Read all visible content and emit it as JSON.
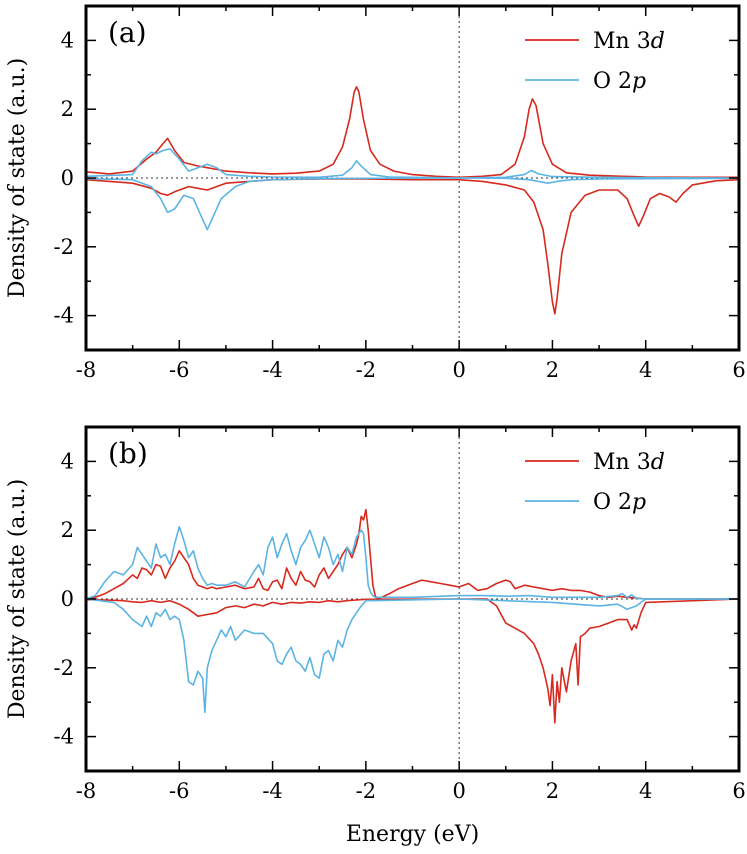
{
  "chart_data": [
    {
      "type": "line",
      "panel_label": "(a)",
      "xlabel": "",
      "ylabel": "Density of state (a.u.)",
      "xlim": [
        -8,
        6
      ],
      "ylim": [
        -5,
        5
      ],
      "xticks": [
        -8,
        -6,
        -4,
        -2,
        0,
        2,
        4,
        6
      ],
      "xtick_labels": [
        "-8",
        "-6",
        "-4",
        "-2",
        "0",
        "2",
        "4",
        "6"
      ],
      "yticks": [
        -4,
        -2,
        0,
        2,
        4
      ],
      "ytick_labels": [
        "-4",
        "-2",
        "0",
        "2",
        "4"
      ],
      "legend_position": "top-right",
      "fermi_level": 0,
      "series": [
        {
          "name": "Mn 3d",
          "label_main": "Mn 3",
          "label_italic": "d",
          "color": "#d62a1e",
          "spin": "up",
          "x": [
            -8.0,
            -7.5,
            -7.0,
            -6.7,
            -6.5,
            -6.35,
            -6.25,
            -6.1,
            -5.9,
            -5.6,
            -5.4,
            -5.2,
            -5.0,
            -4.5,
            -4.0,
            -3.5,
            -3.0,
            -2.7,
            -2.5,
            -2.35,
            -2.25,
            -2.2,
            -2.15,
            -2.05,
            -1.9,
            -1.7,
            -1.4,
            -1.0,
            -0.5,
            0.0,
            0.5,
            0.9,
            1.2,
            1.4,
            1.5,
            1.57,
            1.65,
            1.8,
            2.0,
            2.3,
            2.8,
            3.5,
            4.0,
            5.0,
            6.0
          ],
          "y": [
            0.18,
            0.12,
            0.2,
            0.55,
            0.75,
            1.0,
            1.15,
            0.8,
            0.45,
            0.35,
            0.3,
            0.25,
            0.2,
            0.15,
            0.12,
            0.14,
            0.2,
            0.4,
            0.9,
            1.7,
            2.5,
            2.65,
            2.5,
            1.7,
            0.8,
            0.4,
            0.2,
            0.1,
            0.05,
            0.02,
            0.05,
            0.1,
            0.4,
            1.2,
            2.0,
            2.3,
            2.1,
            1.0,
            0.4,
            0.15,
            0.08,
            0.05,
            0.03,
            0.02,
            0.02
          ]
        },
        {
          "name": "Mn 3d",
          "label_main": "Mn 3",
          "label_italic": "d",
          "color": "#d62a1e",
          "spin": "down",
          "legend": false,
          "x": [
            -8.0,
            -7.5,
            -7.0,
            -6.6,
            -6.4,
            -6.25,
            -6.1,
            -5.8,
            -5.6,
            -5.4,
            -5.2,
            -5.0,
            -4.5,
            -4.0,
            -3.0,
            -2.0,
            -1.0,
            0.0,
            0.5,
            1.0,
            1.4,
            1.6,
            1.8,
            1.9,
            2.0,
            2.05,
            2.1,
            2.2,
            2.4,
            2.7,
            3.0,
            3.4,
            3.6,
            3.75,
            3.85,
            3.95,
            4.1,
            4.3,
            4.5,
            4.65,
            4.8,
            5.0,
            5.5,
            6.0
          ],
          "y": [
            -0.05,
            -0.1,
            -0.15,
            -0.3,
            -0.45,
            -0.5,
            -0.4,
            -0.25,
            -0.3,
            -0.35,
            -0.25,
            -0.15,
            -0.1,
            -0.05,
            -0.03,
            -0.03,
            -0.05,
            -0.05,
            -0.1,
            -0.2,
            -0.35,
            -0.7,
            -1.5,
            -2.5,
            -3.6,
            -3.95,
            -3.5,
            -2.2,
            -1.0,
            -0.5,
            -0.35,
            -0.35,
            -0.6,
            -1.1,
            -1.4,
            -1.1,
            -0.6,
            -0.45,
            -0.55,
            -0.7,
            -0.45,
            -0.2,
            -0.08,
            -0.05
          ]
        },
        {
          "name": "O 2p",
          "label_main": "O 2",
          "label_italic": "p",
          "color": "#5bb4e3",
          "spin": "up",
          "x": [
            -8.0,
            -7.0,
            -6.8,
            -6.6,
            -6.5,
            -6.35,
            -6.2,
            -6.0,
            -5.8,
            -5.6,
            -5.4,
            -5.2,
            -5.0,
            -4.5,
            -4.0,
            -3.0,
            -2.5,
            -2.3,
            -2.2,
            -2.1,
            -1.9,
            -1.5,
            -1.0,
            0.0,
            1.0,
            1.4,
            1.55,
            1.7,
            2.0,
            3.0,
            4.0,
            6.0
          ],
          "y": [
            0.05,
            0.1,
            0.5,
            0.75,
            0.7,
            0.8,
            0.85,
            0.55,
            0.2,
            0.3,
            0.4,
            0.3,
            0.1,
            0.05,
            0.03,
            0.02,
            0.08,
            0.3,
            0.5,
            0.35,
            0.1,
            0.03,
            0.02,
            0.0,
            0.02,
            0.1,
            0.22,
            0.12,
            0.04,
            0.02,
            0.01,
            0.0
          ]
        },
        {
          "name": "O 2p",
          "label_main": "O 2",
          "label_italic": "p",
          "color": "#5bb4e3",
          "spin": "down",
          "legend": false,
          "x": [
            -8.0,
            -7.0,
            -6.6,
            -6.4,
            -6.25,
            -6.1,
            -5.9,
            -5.7,
            -5.5,
            -5.4,
            -5.3,
            -5.1,
            -4.8,
            -4.5,
            -4.0,
            -3.0,
            -2.0,
            0.0,
            1.0,
            1.5,
            1.7,
            1.9,
            2.1,
            2.4,
            3.0,
            4.0,
            6.0
          ],
          "y": [
            -0.02,
            -0.05,
            -0.25,
            -0.6,
            -1.0,
            -0.9,
            -0.5,
            -0.6,
            -1.2,
            -1.5,
            -1.2,
            -0.6,
            -0.25,
            -0.1,
            -0.05,
            -0.02,
            -0.01,
            0.0,
            -0.01,
            -0.05,
            -0.1,
            -0.15,
            -0.1,
            -0.05,
            -0.03,
            -0.02,
            -0.01
          ]
        }
      ]
    },
    {
      "type": "line",
      "panel_label": "(b)",
      "xlabel": "Energy (eV)",
      "ylabel": "Density of state (a.u.)",
      "xlim": [
        -8,
        6
      ],
      "ylim": [
        -5,
        5
      ],
      "xticks": [
        -8,
        -6,
        -4,
        -2,
        0,
        2,
        4,
        6
      ],
      "xtick_labels": [
        "-8",
        "-6",
        "-4",
        "-2",
        "0",
        "2",
        "4",
        "6"
      ],
      "yticks": [
        -4,
        -2,
        0,
        2,
        4
      ],
      "ytick_labels": [
        "-4",
        "-2",
        "0",
        "2",
        "4"
      ],
      "legend_position": "top-right",
      "fermi_level": 0,
      "series": [
        {
          "name": "Mn 3d",
          "label_main": "Mn 3",
          "label_italic": "d",
          "color": "#d62a1e",
          "spin": "up",
          "x": [
            -8.0,
            -7.8,
            -7.6,
            -7.4,
            -7.2,
            -7.0,
            -6.9,
            -6.8,
            -6.7,
            -6.6,
            -6.5,
            -6.4,
            -6.3,
            -6.2,
            -6.1,
            -6.0,
            -5.9,
            -5.8,
            -5.7,
            -5.6,
            -5.5,
            -5.4,
            -5.3,
            -5.2,
            -5.0,
            -4.8,
            -4.6,
            -4.4,
            -4.3,
            -4.2,
            -4.1,
            -4.0,
            -3.9,
            -3.8,
            -3.7,
            -3.6,
            -3.5,
            -3.4,
            -3.3,
            -3.2,
            -3.1,
            -3.0,
            -2.9,
            -2.8,
            -2.7,
            -2.6,
            -2.5,
            -2.4,
            -2.3,
            -2.2,
            -2.15,
            -2.1,
            -2.05,
            -2.0,
            -1.95,
            -1.9,
            -1.85,
            -1.8,
            -1.75,
            -1.5,
            -1.3,
            -1.0,
            -0.8,
            -0.6,
            -0.4,
            -0.2,
            0.0,
            0.2,
            0.4,
            0.6,
            0.8,
            1.0,
            1.1,
            1.2,
            1.4,
            1.6,
            1.8,
            2.0,
            2.2,
            2.4,
            2.6,
            2.8,
            3.0,
            3.2,
            3.4,
            3.6,
            3.8,
            4.0,
            4.1,
            6.0
          ],
          "y": [
            0.0,
            0.05,
            0.15,
            0.3,
            0.45,
            0.7,
            0.6,
            0.9,
            0.85,
            0.7,
            1.0,
            0.95,
            0.6,
            0.9,
            1.1,
            1.4,
            1.2,
            1.0,
            0.6,
            0.4,
            0.35,
            0.3,
            0.35,
            0.3,
            0.35,
            0.4,
            0.3,
            0.35,
            0.6,
            0.3,
            0.25,
            0.5,
            0.55,
            0.3,
            0.9,
            0.6,
            0.4,
            0.8,
            0.55,
            0.5,
            0.35,
            0.7,
            0.9,
            0.6,
            0.8,
            1.0,
            1.3,
            1.5,
            1.2,
            1.6,
            1.9,
            2.4,
            2.3,
            2.6,
            2.0,
            1.2,
            0.4,
            0.1,
            0.0,
            0.15,
            0.3,
            0.45,
            0.55,
            0.5,
            0.45,
            0.4,
            0.35,
            0.45,
            0.25,
            0.3,
            0.45,
            0.55,
            0.5,
            0.3,
            0.4,
            0.35,
            0.3,
            0.25,
            0.3,
            0.25,
            0.25,
            0.2,
            0.1,
            0.05,
            0.08,
            0.05,
            0.03,
            0.0,
            0.0,
            0.0
          ]
        },
        {
          "name": "Mn 3d",
          "label_main": "Mn 3",
          "label_italic": "d",
          "color": "#d62a1e",
          "spin": "down",
          "legend": false,
          "x": [
            -8.0,
            -7.6,
            -7.2,
            -7.0,
            -6.8,
            -6.6,
            -6.4,
            -6.2,
            -6.0,
            -5.8,
            -5.6,
            -5.4,
            -5.2,
            -5.0,
            -4.8,
            -4.6,
            -4.4,
            -4.2,
            -4.0,
            -3.8,
            -3.6,
            -3.4,
            -3.2,
            -3.0,
            -2.8,
            -2.6,
            -2.4,
            -2.2,
            -2.0,
            0.0,
            0.6,
            0.8,
            1.0,
            1.2,
            1.4,
            1.6,
            1.7,
            1.8,
            1.9,
            1.95,
            2.0,
            2.05,
            2.1,
            2.15,
            2.2,
            2.3,
            2.4,
            2.5,
            2.55,
            2.6,
            2.7,
            2.8,
            3.0,
            3.2,
            3.4,
            3.6,
            3.7,
            3.75,
            3.8,
            3.9,
            4.0,
            6.0
          ],
          "y": [
            -0.02,
            -0.03,
            -0.05,
            -0.08,
            -0.1,
            -0.05,
            -0.1,
            -0.05,
            -0.15,
            -0.3,
            -0.5,
            -0.45,
            -0.4,
            -0.25,
            -0.2,
            -0.25,
            -0.15,
            -0.2,
            -0.1,
            -0.15,
            -0.1,
            -0.12,
            -0.08,
            -0.1,
            -0.05,
            -0.08,
            -0.05,
            -0.03,
            -0.01,
            0.0,
            0.0,
            -0.2,
            -0.7,
            -0.85,
            -1.0,
            -1.3,
            -1.6,
            -2.0,
            -2.6,
            -3.1,
            -2.2,
            -3.6,
            -2.4,
            -3.0,
            -2.0,
            -2.7,
            -1.8,
            -1.3,
            -2.5,
            -1.1,
            -1.0,
            -0.85,
            -0.8,
            -0.7,
            -0.6,
            -0.6,
            -0.9,
            -0.75,
            -0.85,
            -0.4,
            -0.1,
            0.0
          ]
        },
        {
          "name": "O 2p",
          "label_main": "O 2",
          "label_italic": "p",
          "color": "#5bb4e3",
          "spin": "up",
          "x": [
            -8.0,
            -7.8,
            -7.6,
            -7.4,
            -7.2,
            -7.0,
            -6.9,
            -6.8,
            -6.7,
            -6.6,
            -6.5,
            -6.4,
            -6.3,
            -6.2,
            -6.1,
            -6.0,
            -5.9,
            -5.8,
            -5.7,
            -5.6,
            -5.5,
            -5.4,
            -5.3,
            -5.2,
            -5.0,
            -4.8,
            -4.6,
            -4.4,
            -4.3,
            -4.2,
            -4.1,
            -4.0,
            -3.9,
            -3.8,
            -3.7,
            -3.6,
            -3.5,
            -3.4,
            -3.3,
            -3.2,
            -3.1,
            -3.0,
            -2.9,
            -2.8,
            -2.7,
            -2.6,
            -2.5,
            -2.4,
            -2.3,
            -2.2,
            -2.1,
            -2.05,
            -2.0,
            -1.95,
            -1.9,
            -1.85,
            -1.8,
            -1.7,
            -1.0,
            0.0,
            0.5,
            1.0,
            1.5,
            2.0,
            2.5,
            3.0,
            3.4,
            3.5,
            3.6,
            3.7,
            3.8,
            4.0,
            6.0
          ],
          "y": [
            0.0,
            0.1,
            0.5,
            0.8,
            0.7,
            1.0,
            1.5,
            1.3,
            1.1,
            0.9,
            1.6,
            1.2,
            1.3,
            1.0,
            1.6,
            2.1,
            1.7,
            1.2,
            1.4,
            0.9,
            0.6,
            0.4,
            0.45,
            0.4,
            0.4,
            0.5,
            0.35,
            0.8,
            1.0,
            0.7,
            1.5,
            1.8,
            1.2,
            1.6,
            1.9,
            1.4,
            1.0,
            1.5,
            1.7,
            2.0,
            1.6,
            1.2,
            1.8,
            1.5,
            1.0,
            1.3,
            0.8,
            1.5,
            1.3,
            1.8,
            2.0,
            1.9,
            1.2,
            0.4,
            0.2,
            0.1,
            0.05,
            0.05,
            0.05,
            0.1,
            0.1,
            0.08,
            0.1,
            0.05,
            0.05,
            0.05,
            0.1,
            0.15,
            0.05,
            0.12,
            0.02,
            0.0,
            0.0
          ]
        },
        {
          "name": "O 2p",
          "label_main": "O 2",
          "label_italic": "p",
          "color": "#5bb4e3",
          "spin": "down",
          "legend": false,
          "x": [
            -8.0,
            -7.4,
            -7.2,
            -7.0,
            -6.8,
            -6.7,
            -6.6,
            -6.5,
            -6.4,
            -6.3,
            -6.2,
            -6.1,
            -6.0,
            -5.9,
            -5.8,
            -5.7,
            -5.6,
            -5.5,
            -5.45,
            -5.4,
            -5.3,
            -5.2,
            -5.1,
            -5.0,
            -4.9,
            -4.8,
            -4.6,
            -4.4,
            -4.2,
            -4.0,
            -3.9,
            -3.8,
            -3.7,
            -3.6,
            -3.5,
            -3.4,
            -3.3,
            -3.2,
            -3.1,
            -3.0,
            -2.9,
            -2.8,
            -2.7,
            -2.6,
            -2.5,
            -2.4,
            -2.3,
            -2.2,
            -2.1,
            -2.0,
            0.0,
            1.0,
            2.0,
            2.5,
            3.0,
            3.4,
            3.6,
            3.8,
            3.9,
            4.0,
            6.0
          ],
          "y": [
            0.0,
            -0.1,
            -0.3,
            -0.6,
            -0.8,
            -0.5,
            -0.8,
            -0.4,
            -0.5,
            -0.3,
            -0.6,
            -0.5,
            -0.6,
            -1.2,
            -2.4,
            -2.5,
            -2.1,
            -2.3,
            -3.3,
            -2.0,
            -1.5,
            -1.2,
            -0.9,
            -1.1,
            -0.8,
            -1.2,
            -0.9,
            -1.0,
            -1.0,
            -1.3,
            -1.8,
            -1.9,
            -1.6,
            -1.4,
            -1.8,
            -1.9,
            -2.1,
            -1.7,
            -2.2,
            -2.3,
            -1.6,
            -1.5,
            -1.8,
            -1.2,
            -1.4,
            -0.9,
            -0.6,
            -0.4,
            -0.2,
            -0.05,
            0.0,
            -0.05,
            -0.1,
            -0.15,
            -0.2,
            -0.15,
            -0.3,
            -0.2,
            -0.1,
            0.0,
            0.0
          ]
        }
      ]
    }
  ]
}
